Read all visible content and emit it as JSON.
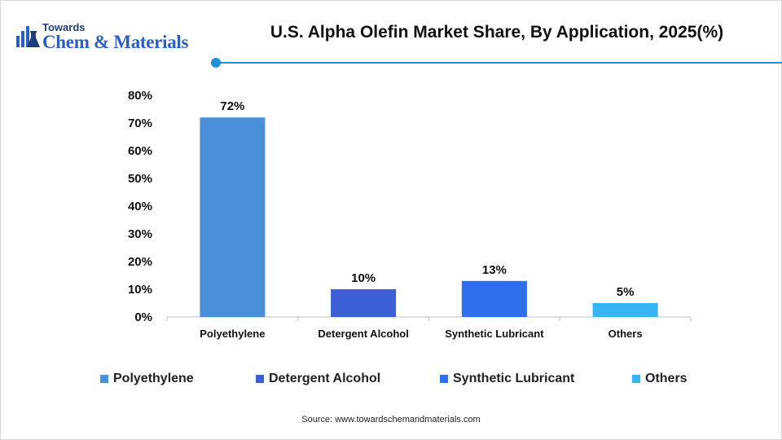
{
  "header": {
    "logo_top": "Towards",
    "logo_main": "Chem & Materials",
    "accent_color": "#1f8fd6"
  },
  "chart_data": {
    "type": "bar",
    "title": "U.S. Alpha Olefin Market Share, By Application, 2025(%)",
    "categories": [
      "Polyethylene",
      "Detergent Alcohol",
      "Synthetic Lubricant",
      "Others"
    ],
    "values": [
      72,
      10,
      13,
      5
    ],
    "value_labels": [
      "72%",
      "10%",
      "13%",
      "5%"
    ],
    "colors": [
      "#4a90d9",
      "#3d5fd6",
      "#2f6fee",
      "#37b4f3"
    ],
    "ylim": [
      0,
      80
    ],
    "yticks": [
      0,
      10,
      20,
      30,
      40,
      50,
      60,
      70,
      80
    ],
    "ytick_labels": [
      "0%",
      "10%",
      "20%",
      "30%",
      "40%",
      "50%",
      "60%",
      "70%",
      "80%"
    ],
    "grid": false,
    "legend_position": "bottom"
  },
  "legend": {
    "items": [
      {
        "label": "Polyethylene",
        "color": "#4a90d9"
      },
      {
        "label": "Detergent Alcohol",
        "color": "#3d5fd6"
      },
      {
        "label": "Synthetic Lubricant",
        "color": "#2f6fee"
      },
      {
        "label": "Others",
        "color": "#37b4f3"
      }
    ]
  },
  "footer": {
    "source": "Source: www.towardschemandmaterials.com"
  }
}
